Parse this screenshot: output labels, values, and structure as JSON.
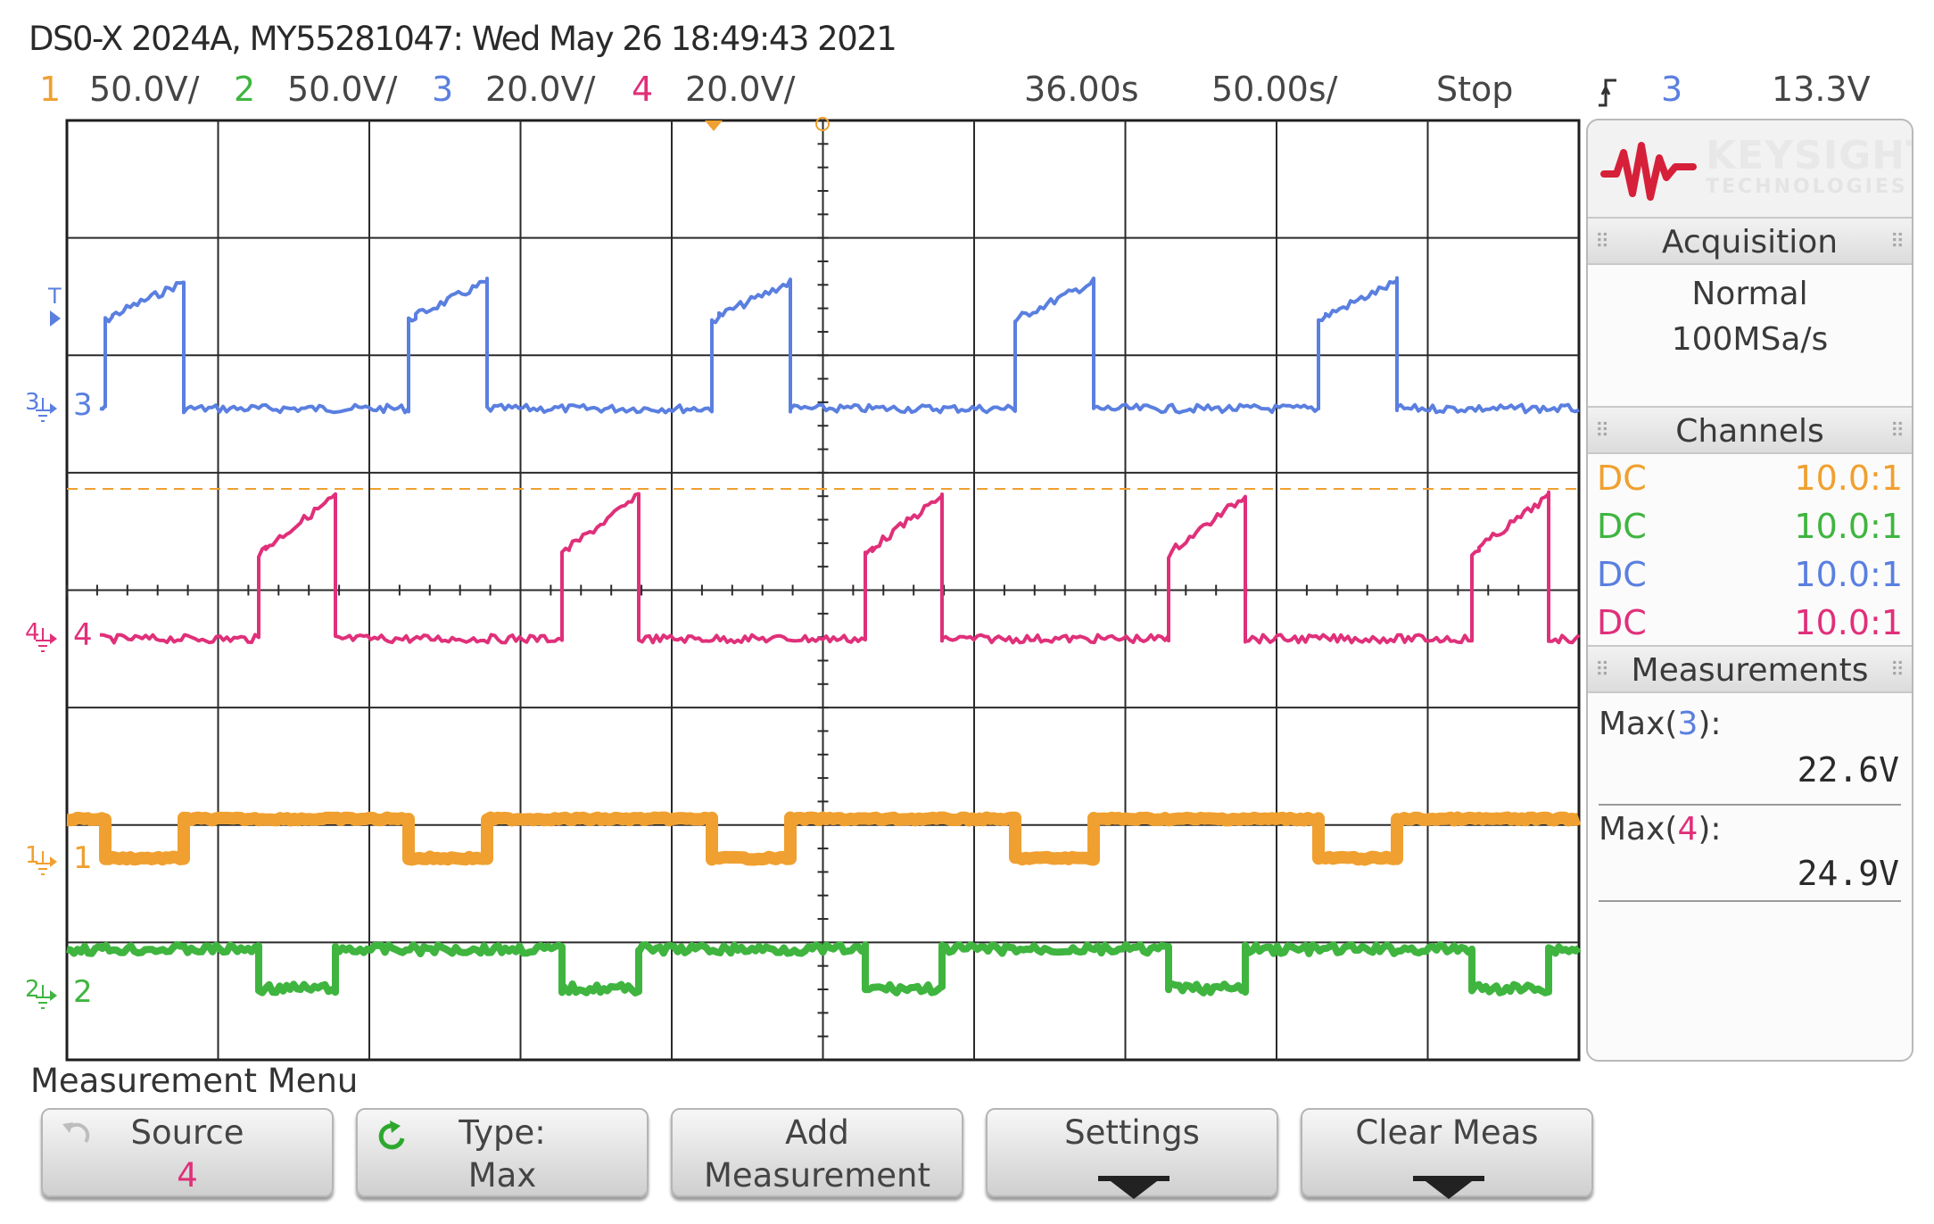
{
  "header": {
    "title_line": "DS0-X 2024A, MY55281047: Wed May 26 18:49:43 2021"
  },
  "channel_bar": {
    "ch1": {
      "num": "1",
      "scale": "50.0V/",
      "color": "#f0a030"
    },
    "ch2": {
      "num": "2",
      "scale": "50.0V/",
      "color": "#3fb53f"
    },
    "ch3": {
      "num": "3",
      "scale": "20.0V/",
      "color": "#5a7fe0"
    },
    "ch4": {
      "num": "4",
      "scale": "20.0V/",
      "color": "#e0307a"
    },
    "delay": "36.00s",
    "timebase": "50.00s/",
    "run_state": "Stop",
    "trigger_source": "3",
    "trigger_level": "13.3V"
  },
  "waveform_markers": {
    "ch3": {
      "ground": "3",
      "label": "3"
    },
    "ch4": {
      "ground": "4",
      "label": "4"
    },
    "ch1": {
      "ground": "1",
      "label": "1"
    },
    "ch2": {
      "ground": "2",
      "label": "2"
    },
    "trig_marker": "T"
  },
  "side_panel": {
    "brand": "KEYSIGHT",
    "brand_sub": "TECHNOLOGIES",
    "acquisition": {
      "heading": "Acquisition",
      "mode": "Normal",
      "rate": "100MSa/s"
    },
    "channels": {
      "heading": "Channels",
      "rows": [
        {
          "coupling": "DC",
          "probe": "10.0:1",
          "color": "#f0a030"
        },
        {
          "coupling": "DC",
          "probe": "10.0:1",
          "color": "#3fb53f"
        },
        {
          "coupling": "DC",
          "probe": "10.0:1",
          "color": "#5a7fe0"
        },
        {
          "coupling": "DC",
          "probe": "10.0:1",
          "color": "#e0307a"
        }
      ]
    },
    "measurements": {
      "heading": "Measurements",
      "items": [
        {
          "prefix": "Max(",
          "channel": "3",
          "suffix": "):",
          "value": "22.6V",
          "channel_color": "#5a7fe0"
        },
        {
          "prefix": "Max(",
          "channel": "4",
          "suffix": "):",
          "value": "24.9V",
          "channel_color": "#e0307a"
        }
      ]
    }
  },
  "menu": {
    "title": "Measurement Menu",
    "softkeys": [
      {
        "line1": "Source",
        "line2": "4"
      },
      {
        "line1": "Type:",
        "line2": "Max"
      },
      {
        "line1": "Add",
        "line2": "Measurement"
      },
      {
        "line1": "Settings",
        "line2": ""
      },
      {
        "line1": "Clear Meas",
        "line2": ""
      }
    ]
  },
  "icons": {
    "trigger_edge": "trigger-edge-icon",
    "softkey_back": "back-arrow-icon",
    "softkey_cycle": "cycle-icon",
    "softkey_down": "down-arrow-icon",
    "logo": "keysight-wave-logo"
  }
}
